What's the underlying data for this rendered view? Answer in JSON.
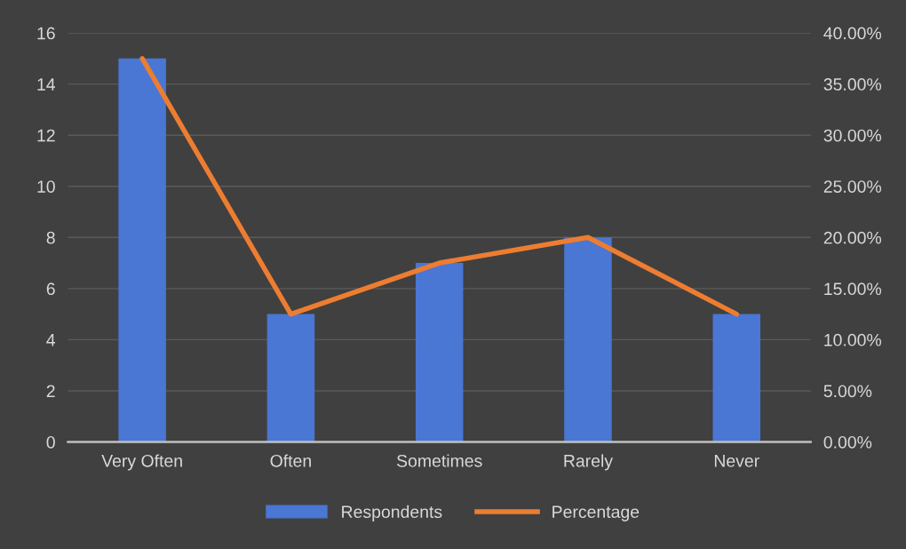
{
  "chart_data": {
    "type": "bar",
    "categories": [
      "Very Often",
      "Often",
      "Sometimes",
      "Rarely",
      "Never"
    ],
    "series": [
      {
        "name": "Respondents",
        "color": "#4a76d4",
        "values": [
          15,
          5,
          7,
          8,
          5
        ]
      },
      {
        "name": "Percentage",
        "type": "line",
        "axis": "y2",
        "color": "#ed7d31",
        "values": [
          37.5,
          12.5,
          17.5,
          20,
          12.5
        ]
      }
    ],
    "ylim": [
      0,
      16
    ],
    "yticks": [
      0,
      2,
      4,
      6,
      8,
      10,
      12,
      14,
      16
    ],
    "y2lim": [
      0,
      40
    ],
    "y2ticks": [
      {
        "value": 0,
        "label": "0.00%"
      },
      {
        "value": 5,
        "label": "5.00%"
      },
      {
        "value": 10,
        "label": "10.00%"
      },
      {
        "value": 15,
        "label": "15.00%"
      },
      {
        "value": 20,
        "label": "20.00%"
      },
      {
        "value": 25,
        "label": "25.00%"
      },
      {
        "value": 30,
        "label": "30.00%"
      },
      {
        "value": 35,
        "label": "35.00%"
      },
      {
        "value": 40,
        "label": "40.00%"
      }
    ],
    "grid": "y",
    "legend": "bottom",
    "marker": "none",
    "line_style": "solid"
  }
}
